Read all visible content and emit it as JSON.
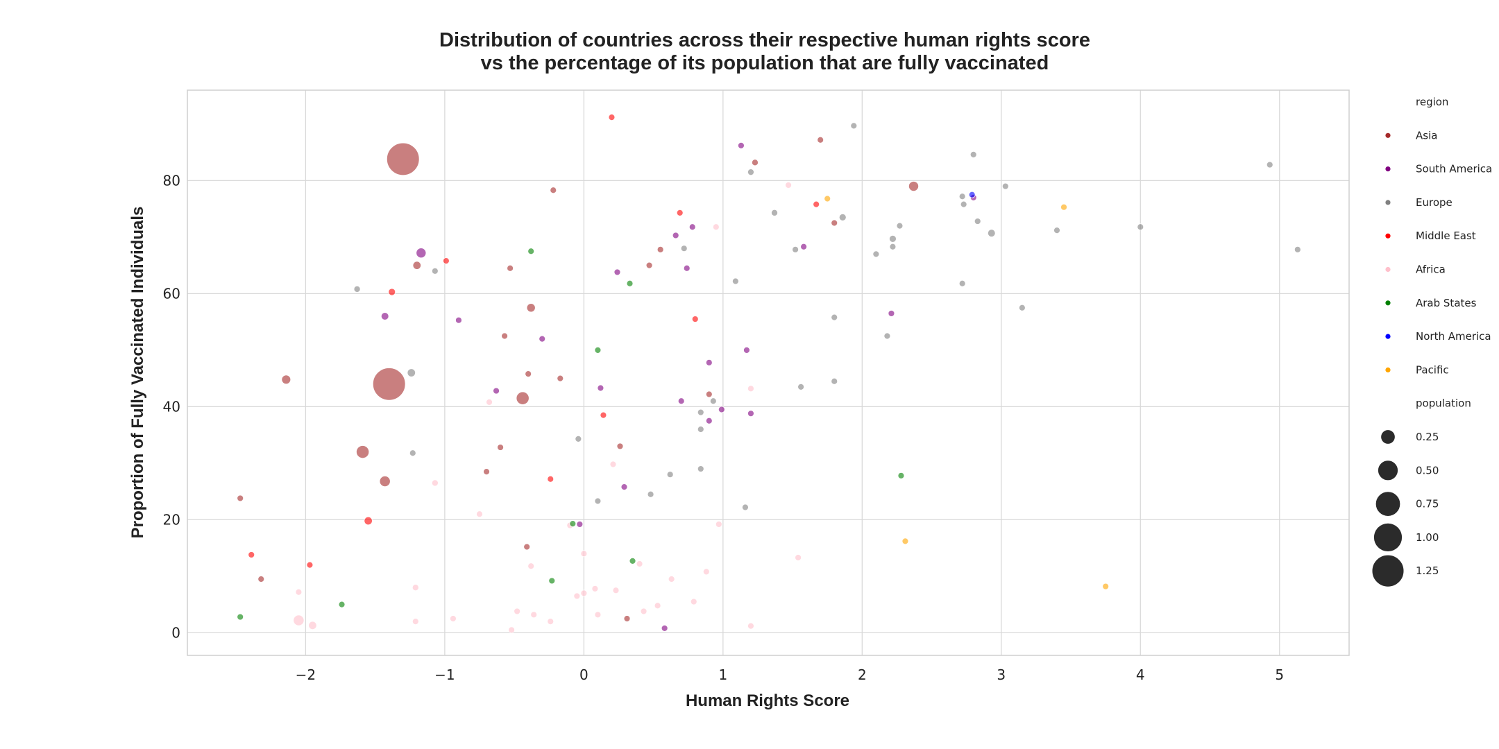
{
  "chart_data": {
    "type": "scatter",
    "title_line1": "Distribution of countries across their respective human rights score",
    "title_line2": "vs the percentage of its population that are fully vaccinated",
    "xlabel": "Human Rights Score",
    "ylabel": "Proportion of Fully Vaccinated Individuals",
    "xlim": [
      -2.85,
      5.5
    ],
    "ylim": [
      -4,
      96
    ],
    "xticks": [
      -2,
      -1,
      0,
      1,
      2,
      3,
      4,
      5
    ],
    "xtick_labels": [
      "−2",
      "−1",
      "0",
      "1",
      "2",
      "3",
      "4",
      "5"
    ],
    "yticks": [
      0,
      20,
      40,
      60,
      80
    ],
    "ytick_labels": [
      "0",
      "20",
      "40",
      "60",
      "80"
    ],
    "grid": true,
    "legend_position": "right-outside",
    "legend": {
      "hue_title": "region",
      "size_title": "population",
      "regions": [
        {
          "name": "Asia",
          "color": "#a52a2a"
        },
        {
          "name": "South America",
          "color": "#800080"
        },
        {
          "name": "Europe",
          "color": "#808080"
        },
        {
          "name": "Middle East",
          "color": "#ff0000"
        },
        {
          "name": "Africa",
          "color": "#ffc0cb"
        },
        {
          "name": "Arab States",
          "color": "#008000"
        },
        {
          "name": "North America",
          "color": "#0000ff"
        },
        {
          "name": "Pacific",
          "color": "#ffa500"
        }
      ],
      "sizes": [
        {
          "label": "0.25",
          "value": 0.25
        },
        {
          "label": "0.50",
          "value": 0.5
        },
        {
          "label": "0.75",
          "value": 0.75
        },
        {
          "label": "1.00",
          "value": 1.0
        },
        {
          "label": "1.25",
          "value": 1.25
        }
      ]
    },
    "points": [
      {
        "x": -1.3,
        "y": 83.8,
        "size": 1.3,
        "region": "Asia"
      },
      {
        "x": -1.4,
        "y": 44.0,
        "size": 1.3,
        "region": "Asia"
      },
      {
        "x": -1.2,
        "y": 65.0,
        "size": 0.08,
        "region": "Asia"
      },
      {
        "x": -2.14,
        "y": 44.8,
        "size": 0.1,
        "region": "Asia"
      },
      {
        "x": -1.59,
        "y": 32.0,
        "size": 0.2,
        "region": "Asia"
      },
      {
        "x": -1.43,
        "y": 26.8,
        "size": 0.14,
        "region": "Asia"
      },
      {
        "x": -2.47,
        "y": 23.8,
        "size": 0.04,
        "region": "Asia"
      },
      {
        "x": -2.32,
        "y": 9.5,
        "size": 0.03,
        "region": "Asia"
      },
      {
        "x": -0.22,
        "y": 78.3,
        "size": 0.03,
        "region": "Asia"
      },
      {
        "x": -0.53,
        "y": 64.5,
        "size": 0.02,
        "region": "Asia"
      },
      {
        "x": -0.38,
        "y": 57.5,
        "size": 0.09,
        "region": "Asia"
      },
      {
        "x": -0.44,
        "y": 41.5,
        "size": 0.2,
        "region": "Asia"
      },
      {
        "x": -0.4,
        "y": 45.8,
        "size": 0.02,
        "region": "Asia"
      },
      {
        "x": -0.17,
        "y": 45.0,
        "size": 0.02,
        "region": "Asia"
      },
      {
        "x": -0.6,
        "y": 32.8,
        "size": 0.03,
        "region": "Asia"
      },
      {
        "x": -0.7,
        "y": 28.5,
        "size": 0.02,
        "region": "Asia"
      },
      {
        "x": -0.41,
        "y": 15.2,
        "size": 0.01,
        "region": "Asia"
      },
      {
        "x": -0.57,
        "y": 52.5,
        "size": 0.01,
        "region": "Asia"
      },
      {
        "x": 0.26,
        "y": 33.0,
        "size": 0.02,
        "region": "Asia"
      },
      {
        "x": 0.31,
        "y": 2.5,
        "size": 0.01,
        "region": "Asia"
      },
      {
        "x": 0.47,
        "y": 65.0,
        "size": 0.01,
        "region": "Asia"
      },
      {
        "x": 0.55,
        "y": 67.8,
        "size": 0.01,
        "region": "Asia"
      },
      {
        "x": 0.9,
        "y": 42.2,
        "size": 0.01,
        "region": "Asia"
      },
      {
        "x": 1.23,
        "y": 83.2,
        "size": 0.05,
        "region": "Asia"
      },
      {
        "x": 1.7,
        "y": 87.2,
        "size": 0.01,
        "region": "Asia"
      },
      {
        "x": 1.8,
        "y": 72.5,
        "size": 0.01,
        "region": "Asia"
      },
      {
        "x": 2.37,
        "y": 79.0,
        "size": 0.12,
        "region": "Asia"
      },
      {
        "x": -1.17,
        "y": 67.2,
        "size": 0.12,
        "region": "South America"
      },
      {
        "x": -1.43,
        "y": 56.0,
        "size": 0.07,
        "region": "South America"
      },
      {
        "x": -0.9,
        "y": 55.3,
        "size": 0.04,
        "region": "South America"
      },
      {
        "x": -0.3,
        "y": 52.0,
        "size": 0.02,
        "region": "South America"
      },
      {
        "x": -0.63,
        "y": 42.8,
        "size": 0.02,
        "region": "South America"
      },
      {
        "x": -0.03,
        "y": 19.2,
        "size": 0.02,
        "region": "South America"
      },
      {
        "x": 0.12,
        "y": 43.3,
        "size": 0.01,
        "region": "South America"
      },
      {
        "x": 0.24,
        "y": 63.8,
        "size": 0.01,
        "region": "South America"
      },
      {
        "x": 0.29,
        "y": 25.8,
        "size": 0.02,
        "region": "South America"
      },
      {
        "x": 0.58,
        "y": 0.8,
        "size": 0.02,
        "region": "South America"
      },
      {
        "x": 0.66,
        "y": 70.3,
        "size": 0.02,
        "region": "South America"
      },
      {
        "x": 0.7,
        "y": 41.0,
        "size": 0.02,
        "region": "South America"
      },
      {
        "x": 0.74,
        "y": 64.5,
        "size": 0.02,
        "region": "South America"
      },
      {
        "x": 0.78,
        "y": 71.8,
        "size": 0.03,
        "region": "South America"
      },
      {
        "x": 0.9,
        "y": 47.8,
        "size": 0.01,
        "region": "South America"
      },
      {
        "x": 0.9,
        "y": 37.5,
        "size": 0.01,
        "region": "South America"
      },
      {
        "x": 0.99,
        "y": 39.5,
        "size": 0.01,
        "region": "South America"
      },
      {
        "x": 1.13,
        "y": 86.2,
        "size": 0.02,
        "region": "South America"
      },
      {
        "x": 1.17,
        "y": 50.0,
        "size": 0.01,
        "region": "South America"
      },
      {
        "x": 1.2,
        "y": 38.8,
        "size": 0.01,
        "region": "South America"
      },
      {
        "x": 1.58,
        "y": 68.3,
        "size": 0.02,
        "region": "South America"
      },
      {
        "x": 2.21,
        "y": 56.5,
        "size": 0.01,
        "region": "South America"
      },
      {
        "x": 2.8,
        "y": 77.0,
        "size": 0.02,
        "region": "South America"
      },
      {
        "x": -1.63,
        "y": 60.8,
        "size": 0.05,
        "region": "Europe"
      },
      {
        "x": -1.24,
        "y": 46.0,
        "size": 0.08,
        "region": "Europe"
      },
      {
        "x": -1.23,
        "y": 31.8,
        "size": 0.04,
        "region": "Europe"
      },
      {
        "x": -1.07,
        "y": 64.0,
        "size": 0.01,
        "region": "Europe"
      },
      {
        "x": -0.04,
        "y": 34.3,
        "size": 0.01,
        "region": "Europe"
      },
      {
        "x": 0.1,
        "y": 23.3,
        "size": 0.01,
        "region": "Europe"
      },
      {
        "x": 0.48,
        "y": 24.5,
        "size": 0.01,
        "region": "Europe"
      },
      {
        "x": 0.62,
        "y": 28.0,
        "size": 0.01,
        "region": "Europe"
      },
      {
        "x": 0.72,
        "y": 68.0,
        "size": 0.01,
        "region": "Europe"
      },
      {
        "x": 0.84,
        "y": 39.0,
        "size": 0.01,
        "region": "Europe"
      },
      {
        "x": 0.84,
        "y": 29.0,
        "size": 0.01,
        "region": "Europe"
      },
      {
        "x": 0.84,
        "y": 36.0,
        "size": 0.01,
        "region": "Europe"
      },
      {
        "x": 0.93,
        "y": 41.0,
        "size": 0.01,
        "region": "Europe"
      },
      {
        "x": 1.09,
        "y": 62.2,
        "size": 0.01,
        "region": "Europe"
      },
      {
        "x": 1.16,
        "y": 22.2,
        "size": 0.01,
        "region": "Europe"
      },
      {
        "x": 1.2,
        "y": 81.5,
        "size": 0.05,
        "region": "Europe"
      },
      {
        "x": 1.37,
        "y": 74.3,
        "size": 0.05,
        "region": "Europe"
      },
      {
        "x": 1.52,
        "y": 67.8,
        "size": 0.01,
        "region": "Europe"
      },
      {
        "x": 1.56,
        "y": 43.5,
        "size": 0.01,
        "region": "Europe"
      },
      {
        "x": 1.8,
        "y": 55.8,
        "size": 0.04,
        "region": "Europe"
      },
      {
        "x": 1.8,
        "y": 44.5,
        "size": 0.01,
        "region": "Europe"
      },
      {
        "x": 1.86,
        "y": 73.5,
        "size": 0.06,
        "region": "Europe"
      },
      {
        "x": 1.94,
        "y": 89.7,
        "size": 0.01,
        "region": "Europe"
      },
      {
        "x": 2.1,
        "y": 67.0,
        "size": 0.01,
        "region": "Europe"
      },
      {
        "x": 2.18,
        "y": 52.5,
        "size": 0.01,
        "region": "Europe"
      },
      {
        "x": 2.22,
        "y": 68.3,
        "size": 0.01,
        "region": "Europe"
      },
      {
        "x": 2.22,
        "y": 69.7,
        "size": 0.06,
        "region": "Europe"
      },
      {
        "x": 2.27,
        "y": 72.0,
        "size": 0.01,
        "region": "Europe"
      },
      {
        "x": 2.72,
        "y": 77.2,
        "size": 0.01,
        "region": "Europe"
      },
      {
        "x": 2.73,
        "y": 75.8,
        "size": 0.01,
        "region": "Europe"
      },
      {
        "x": 2.72,
        "y": 61.8,
        "size": 0.01,
        "region": "Europe"
      },
      {
        "x": 2.8,
        "y": 84.6,
        "size": 0.01,
        "region": "Europe"
      },
      {
        "x": 2.83,
        "y": 72.8,
        "size": 0.01,
        "region": "Europe"
      },
      {
        "x": 2.93,
        "y": 70.7,
        "size": 0.07,
        "region": "Europe"
      },
      {
        "x": 3.03,
        "y": 79.0,
        "size": 0.01,
        "region": "Europe"
      },
      {
        "x": 3.15,
        "y": 57.5,
        "size": 0.01,
        "region": "Europe"
      },
      {
        "x": 3.4,
        "y": 71.2,
        "size": 0.02,
        "region": "Europe"
      },
      {
        "x": 4.0,
        "y": 71.8,
        "size": 0.01,
        "region": "Europe"
      },
      {
        "x": 4.93,
        "y": 82.8,
        "size": 0.01,
        "region": "Europe"
      },
      {
        "x": 5.13,
        "y": 67.8,
        "size": 0.01,
        "region": "Europe"
      },
      {
        "x": -1.55,
        "y": 19.8,
        "size": 0.08,
        "region": "Middle East"
      },
      {
        "x": -1.38,
        "y": 60.3,
        "size": 0.06,
        "region": "Middle East"
      },
      {
        "x": -0.99,
        "y": 65.8,
        "size": 0.03,
        "region": "Middle East"
      },
      {
        "x": -2.39,
        "y": 13.8,
        "size": 0.03,
        "region": "Middle East"
      },
      {
        "x": -1.97,
        "y": 12.0,
        "size": 0.01,
        "region": "Middle East"
      },
      {
        "x": -0.24,
        "y": 27.2,
        "size": 0.02,
        "region": "Middle East"
      },
      {
        "x": 0.14,
        "y": 38.5,
        "size": 0.02,
        "region": "Middle East"
      },
      {
        "x": 0.2,
        "y": 91.2,
        "size": 0.01,
        "region": "Middle East"
      },
      {
        "x": 0.69,
        "y": 74.3,
        "size": 0.01,
        "region": "Middle East"
      },
      {
        "x": 0.8,
        "y": 55.5,
        "size": 0.01,
        "region": "Middle East"
      },
      {
        "x": 1.67,
        "y": 75.8,
        "size": 0.02,
        "region": "Middle East"
      },
      {
        "x": -2.05,
        "y": 2.2,
        "size": 0.14,
        "region": "Africa"
      },
      {
        "x": -1.95,
        "y": 1.3,
        "size": 0.08,
        "region": "Africa"
      },
      {
        "x": -2.05,
        "y": 7.2,
        "size": 0.01,
        "region": "Africa"
      },
      {
        "x": -1.21,
        "y": 8.0,
        "size": 0.05,
        "region": "Africa"
      },
      {
        "x": -1.21,
        "y": 2.0,
        "size": 0.01,
        "region": "Africa"
      },
      {
        "x": -1.07,
        "y": 26.5,
        "size": 0.05,
        "region": "Africa"
      },
      {
        "x": -0.94,
        "y": 2.5,
        "size": 0.02,
        "region": "Africa"
      },
      {
        "x": -0.75,
        "y": 21.0,
        "size": 0.01,
        "region": "Africa"
      },
      {
        "x": -0.68,
        "y": 40.8,
        "size": 0.01,
        "region": "Africa"
      },
      {
        "x": -0.52,
        "y": 0.5,
        "size": 0.01,
        "region": "Africa"
      },
      {
        "x": -0.48,
        "y": 3.8,
        "size": 0.01,
        "region": "Africa"
      },
      {
        "x": -0.38,
        "y": 11.8,
        "size": 0.02,
        "region": "Africa"
      },
      {
        "x": -0.36,
        "y": 3.2,
        "size": 0.02,
        "region": "Africa"
      },
      {
        "x": -0.24,
        "y": 2.0,
        "size": 0.02,
        "region": "Africa"
      },
      {
        "x": -0.1,
        "y": 19.0,
        "size": 0.01,
        "region": "Africa"
      },
      {
        "x": -0.05,
        "y": 6.5,
        "size": 0.01,
        "region": "Africa"
      },
      {
        "x": 0.0,
        "y": 7.0,
        "size": 0.01,
        "region": "Africa"
      },
      {
        "x": 0.0,
        "y": 14.0,
        "size": 0.01,
        "region": "Africa"
      },
      {
        "x": 0.08,
        "y": 7.8,
        "size": 0.01,
        "region": "Africa"
      },
      {
        "x": 0.1,
        "y": 3.2,
        "size": 0.02,
        "region": "Africa"
      },
      {
        "x": 0.21,
        "y": 29.8,
        "size": 0.01,
        "region": "Africa"
      },
      {
        "x": 0.23,
        "y": 7.5,
        "size": 0.02,
        "region": "Africa"
      },
      {
        "x": 0.4,
        "y": 12.2,
        "size": 0.01,
        "region": "Africa"
      },
      {
        "x": 0.43,
        "y": 3.8,
        "size": 0.02,
        "region": "Africa"
      },
      {
        "x": 0.53,
        "y": 4.8,
        "size": 0.01,
        "region": "Africa"
      },
      {
        "x": 0.63,
        "y": 9.5,
        "size": 0.01,
        "region": "Africa"
      },
      {
        "x": 0.79,
        "y": 5.5,
        "size": 0.01,
        "region": "Africa"
      },
      {
        "x": 0.88,
        "y": 10.8,
        "size": 0.01,
        "region": "Africa"
      },
      {
        "x": 0.95,
        "y": 71.8,
        "size": 0.01,
        "region": "Africa"
      },
      {
        "x": 0.97,
        "y": 19.2,
        "size": 0.01,
        "region": "Africa"
      },
      {
        "x": 1.2,
        "y": 43.2,
        "size": 0.01,
        "region": "Africa"
      },
      {
        "x": 1.2,
        "y": 1.2,
        "size": 0.01,
        "region": "Africa"
      },
      {
        "x": 1.47,
        "y": 79.2,
        "size": 0.01,
        "region": "Africa"
      },
      {
        "x": 1.54,
        "y": 13.3,
        "size": 0.01,
        "region": "Africa"
      },
      {
        "x": -2.47,
        "y": 2.8,
        "size": 0.03,
        "region": "Arab States"
      },
      {
        "x": -1.74,
        "y": 5.0,
        "size": 0.02,
        "region": "Arab States"
      },
      {
        "x": -0.38,
        "y": 67.5,
        "size": 0.01,
        "region": "Arab States"
      },
      {
        "x": -0.23,
        "y": 9.2,
        "size": 0.01,
        "region": "Arab States"
      },
      {
        "x": -0.08,
        "y": 19.3,
        "size": 0.02,
        "region": "Arab States"
      },
      {
        "x": 0.1,
        "y": 50.0,
        "size": 0.02,
        "region": "Arab States"
      },
      {
        "x": 0.33,
        "y": 61.8,
        "size": 0.04,
        "region": "Arab States"
      },
      {
        "x": 0.35,
        "y": 12.7,
        "size": 0.04,
        "region": "Arab States"
      },
      {
        "x": 2.28,
        "y": 27.8,
        "size": 0.01,
        "region": "Arab States"
      },
      {
        "x": 2.79,
        "y": 77.5,
        "size": 0.03,
        "region": "North America"
      },
      {
        "x": 1.75,
        "y": 76.8,
        "size": 0.03,
        "region": "Pacific"
      },
      {
        "x": 2.31,
        "y": 16.2,
        "size": 0.01,
        "region": "Pacific"
      },
      {
        "x": 3.45,
        "y": 75.3,
        "size": 0.01,
        "region": "Pacific"
      },
      {
        "x": 3.75,
        "y": 8.2,
        "size": 0.01,
        "region": "Pacific"
      }
    ]
  }
}
